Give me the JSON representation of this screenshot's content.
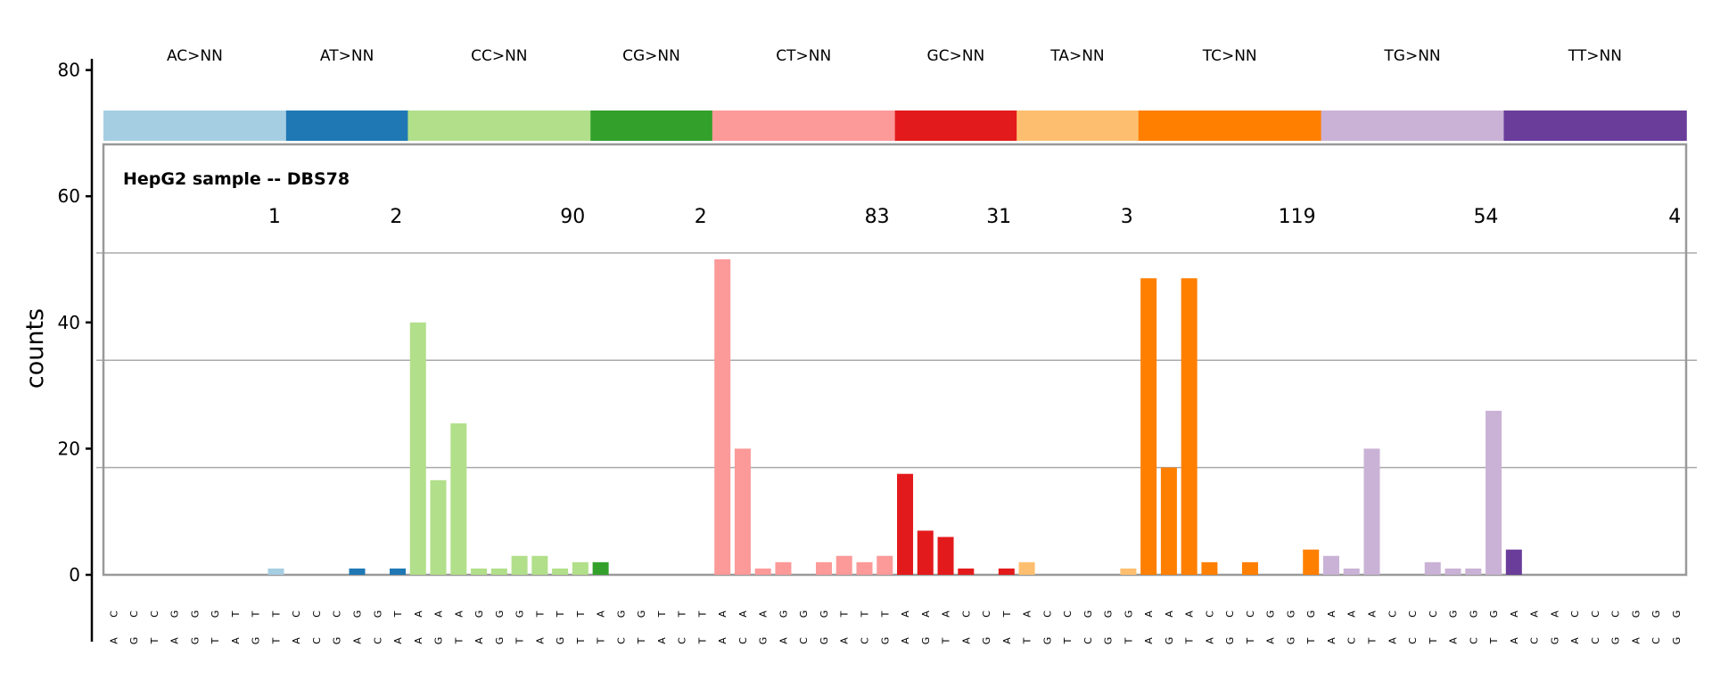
{
  "chart_data": {
    "type": "bar",
    "title": "HepG2 sample -- DBS78",
    "xlabel": "",
    "ylabel": "counts",
    "ylim": [
      0,
      80
    ],
    "yticks": [
      0,
      20,
      40,
      60,
      80
    ],
    "gridlines": [
      17,
      34,
      51
    ],
    "groups": [
      {
        "name": "AC>NN",
        "color": "#a6cee3",
        "total": "1",
        "mutations": [
          "CA",
          "CG",
          "CT",
          "GA",
          "GG",
          "GT",
          "TA",
          "TG",
          "TT"
        ],
        "values": [
          0,
          0,
          0,
          0,
          0,
          0,
          0,
          0,
          1
        ]
      },
      {
        "name": "AT>NN",
        "color": "#1f78b4",
        "total": "2",
        "mutations": [
          "CA",
          "CC",
          "CG",
          "GA",
          "GC",
          "TA"
        ],
        "values": [
          0,
          0,
          0,
          1,
          0,
          1
        ]
      },
      {
        "name": "CC>NN",
        "color": "#b2df8a",
        "total": "90",
        "mutations": [
          "AA",
          "AG",
          "AT",
          "GA",
          "GG",
          "GT",
          "TA",
          "TG",
          "TT"
        ],
        "values": [
          40,
          15,
          24,
          1,
          1,
          3,
          3,
          1,
          2
        ]
      },
      {
        "name": "CG>NN",
        "color": "#33a02c",
        "total": "2",
        "mutations": [
          "AT",
          "GC",
          "GT",
          "TA",
          "TC",
          "TT"
        ],
        "values": [
          2,
          0,
          0,
          0,
          0,
          0
        ]
      },
      {
        "name": "CT>NN",
        "color": "#fb9a99",
        "total": "83",
        "mutations": [
          "AA",
          "AC",
          "AG",
          "GA",
          "GC",
          "GG",
          "TA",
          "TC",
          "TG"
        ],
        "values": [
          50,
          20,
          1,
          2,
          0,
          2,
          3,
          2,
          3
        ]
      },
      {
        "name": "GC>NN",
        "color": "#e31a1c",
        "total": "31",
        "mutations": [
          "AA",
          "AG",
          "AT",
          "CA",
          "CG",
          "TA"
        ],
        "values": [
          16,
          7,
          6,
          1,
          0,
          1
        ]
      },
      {
        "name": "TA>NN",
        "color": "#fdbf6f",
        "total": "3",
        "mutations": [
          "AT",
          "CG",
          "CT",
          "GC",
          "GG",
          "GT"
        ],
        "values": [
          2,
          0,
          0,
          0,
          0,
          1
        ]
      },
      {
        "name": "TC>NN",
        "color": "#ff7f00",
        "total": "119",
        "mutations": [
          "AA",
          "AG",
          "AT",
          "CA",
          "CG",
          "CT",
          "GA",
          "GG",
          "GT"
        ],
        "values": [
          47,
          17,
          47,
          2,
          0,
          2,
          0,
          0,
          4
        ]
      },
      {
        "name": "TG>NN",
        "color": "#cab2d6",
        "total": "54",
        "mutations": [
          "AA",
          "AC",
          "AT",
          "CA",
          "CC",
          "CT",
          "GA",
          "GC",
          "GT"
        ],
        "values": [
          3,
          1,
          20,
          0,
          0,
          2,
          1,
          1,
          26
        ]
      },
      {
        "name": "TT>NN",
        "color": "#6a3d9a",
        "total": "4",
        "mutations": [
          "AA",
          "AC",
          "AG",
          "CA",
          "CC",
          "CG",
          "GA",
          "GC",
          "GG"
        ],
        "values": [
          4,
          0,
          0,
          0,
          0,
          0,
          0,
          0,
          0
        ]
      }
    ]
  }
}
